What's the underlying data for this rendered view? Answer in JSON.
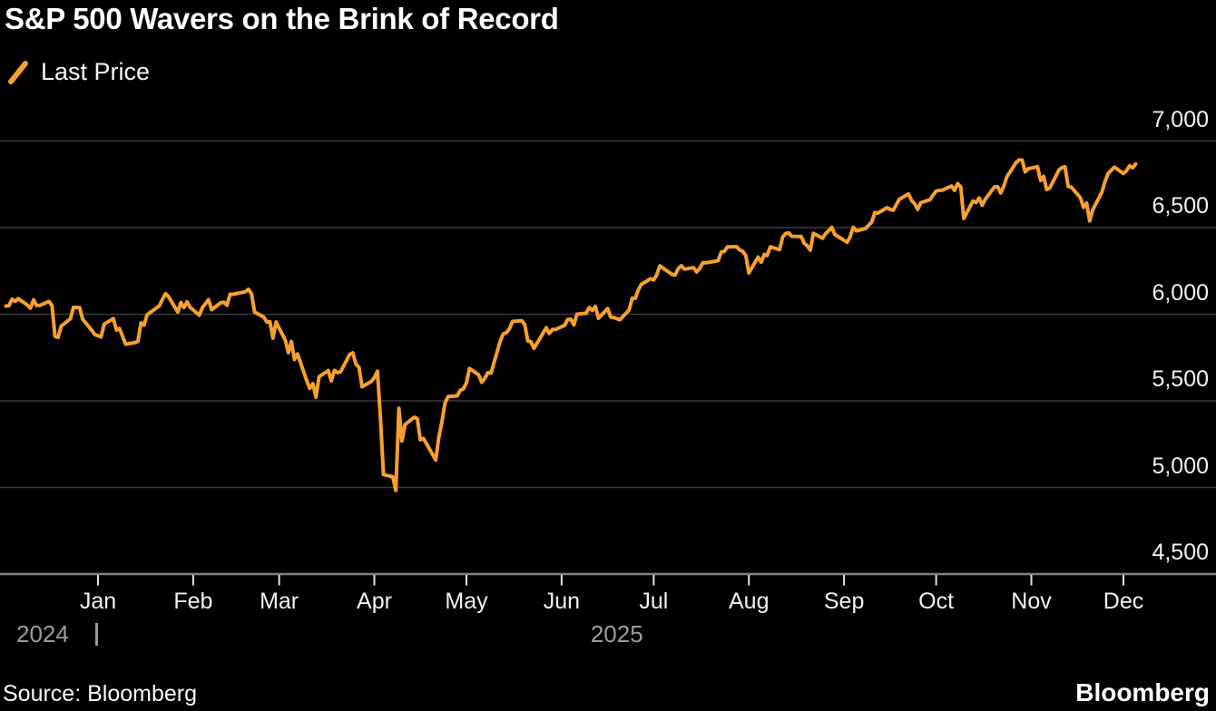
{
  "title": "S&P 500 Wavers on the Brink of Record",
  "legend": {
    "swatch_icon": "slash-icon",
    "label": "Last Price"
  },
  "footer": {
    "source": "Source: Bloomberg",
    "brand": "Bloomberg"
  },
  "colors": {
    "background": "#000000",
    "line": "#F7A02E",
    "gridline": "#3b3b3b",
    "axis_line": "#828282",
    "tick": "#e5e5e5",
    "label_white": "#f2f2f2",
    "label_gray": "#9c9c9c"
  },
  "chart_data": {
    "type": "line",
    "title": "S&P 500 Wavers on the Brink of Record",
    "legend_entries": [
      "Last Price"
    ],
    "legend_position": "top-left",
    "grid": "horizontal",
    "x_axis": {
      "tick_labels": [
        "Jan",
        "Feb",
        "Mar",
        "Apr",
        "May",
        "Jun",
        "Jul",
        "Aug",
        "Sep",
        "Oct",
        "Nov",
        "Dec"
      ],
      "year_labels": [
        "2024",
        "2025"
      ],
      "start": "2024-12-02",
      "end": "2025-12-05"
    },
    "y_axis": {
      "side": "right",
      "ticks": [
        7000,
        6500,
        6000,
        5500,
        5000,
        4500
      ],
      "tick_labels": [
        "7,000",
        "6,500",
        "6,000",
        "5,500",
        "5,000",
        "4,500"
      ],
      "range": [
        4400,
        7120
      ]
    },
    "series": [
      {
        "name": "Last Price",
        "color": "#F7A02E",
        "points": [
          [
            "2024-12-02",
            6047
          ],
          [
            "2024-12-03",
            6050
          ],
          [
            "2024-12-04",
            6087
          ],
          [
            "2024-12-05",
            6075
          ],
          [
            "2024-12-06",
            6090
          ],
          [
            "2024-12-09",
            6053
          ],
          [
            "2024-12-10",
            6035
          ],
          [
            "2024-12-11",
            6084
          ],
          [
            "2024-12-12",
            6051
          ],
          [
            "2024-12-13",
            6051
          ],
          [
            "2024-12-16",
            6074
          ],
          [
            "2024-12-17",
            6051
          ],
          [
            "2024-12-18",
            5872
          ],
          [
            "2024-12-19",
            5867
          ],
          [
            "2024-12-20",
            5931
          ],
          [
            "2024-12-23",
            5974
          ],
          [
            "2024-12-24",
            6040
          ],
          [
            "2024-12-26",
            6038
          ],
          [
            "2024-12-27",
            5971
          ],
          [
            "2024-12-30",
            5907
          ],
          [
            "2024-12-31",
            5882
          ],
          [
            "2025-01-02",
            5869
          ],
          [
            "2025-01-03",
            5943
          ],
          [
            "2025-01-06",
            5975
          ],
          [
            "2025-01-07",
            5909
          ],
          [
            "2025-01-08",
            5918
          ],
          [
            "2025-01-10",
            5827
          ],
          [
            "2025-01-13",
            5836
          ],
          [
            "2025-01-14",
            5843
          ],
          [
            "2025-01-15",
            5950
          ],
          [
            "2025-01-16",
            5937
          ],
          [
            "2025-01-17",
            5997
          ],
          [
            "2025-01-21",
            6049
          ],
          [
            "2025-01-22",
            6086
          ],
          [
            "2025-01-23",
            6119
          ],
          [
            "2025-01-24",
            6101
          ],
          [
            "2025-01-27",
            6012
          ],
          [
            "2025-01-28",
            6068
          ],
          [
            "2025-01-29",
            6039
          ],
          [
            "2025-01-30",
            6071
          ],
          [
            "2025-01-31",
            6041
          ],
          [
            "2025-02-03",
            5995
          ],
          [
            "2025-02-04",
            6038
          ],
          [
            "2025-02-05",
            6061
          ],
          [
            "2025-02-06",
            6084
          ],
          [
            "2025-02-07",
            6026
          ],
          [
            "2025-02-10",
            6066
          ],
          [
            "2025-02-11",
            6069
          ],
          [
            "2025-02-12",
            6052
          ],
          [
            "2025-02-13",
            6115
          ],
          [
            "2025-02-14",
            6115
          ],
          [
            "2025-02-18",
            6130
          ],
          [
            "2025-02-19",
            6144
          ],
          [
            "2025-02-20",
            6118
          ],
          [
            "2025-02-21",
            6013
          ],
          [
            "2025-02-24",
            5983
          ],
          [
            "2025-02-25",
            5955
          ],
          [
            "2025-02-26",
            5956
          ],
          [
            "2025-02-27",
            5862
          ],
          [
            "2025-02-28",
            5955
          ],
          [
            "2025-03-03",
            5850
          ],
          [
            "2025-03-04",
            5778
          ],
          [
            "2025-03-05",
            5843
          ],
          [
            "2025-03-06",
            5739
          ],
          [
            "2025-03-07",
            5770
          ],
          [
            "2025-03-10",
            5615
          ],
          [
            "2025-03-11",
            5572
          ],
          [
            "2025-03-12",
            5599
          ],
          [
            "2025-03-13",
            5521
          ],
          [
            "2025-03-14",
            5639
          ],
          [
            "2025-03-17",
            5675
          ],
          [
            "2025-03-18",
            5615
          ],
          [
            "2025-03-19",
            5676
          ],
          [
            "2025-03-20",
            5663
          ],
          [
            "2025-03-21",
            5668
          ],
          [
            "2025-03-24",
            5768
          ],
          [
            "2025-03-25",
            5777
          ],
          [
            "2025-03-26",
            5712
          ],
          [
            "2025-03-27",
            5693
          ],
          [
            "2025-03-28",
            5581
          ],
          [
            "2025-03-31",
            5612
          ],
          [
            "2025-04-01",
            5633
          ],
          [
            "2025-04-02",
            5671
          ],
          [
            "2025-04-03",
            5396
          ],
          [
            "2025-04-04",
            5074
          ],
          [
            "2025-04-07",
            5062
          ],
          [
            "2025-04-08",
            4983
          ],
          [
            "2025-04-09",
            5457
          ],
          [
            "2025-04-10",
            5268
          ],
          [
            "2025-04-11",
            5363
          ],
          [
            "2025-04-14",
            5406
          ],
          [
            "2025-04-15",
            5397
          ],
          [
            "2025-04-16",
            5275
          ],
          [
            "2025-04-17",
            5283
          ],
          [
            "2025-04-21",
            5158
          ],
          [
            "2025-04-22",
            5288
          ],
          [
            "2025-04-23",
            5376
          ],
          [
            "2025-04-24",
            5485
          ],
          [
            "2025-04-25",
            5525
          ],
          [
            "2025-04-28",
            5529
          ],
          [
            "2025-04-29",
            5561
          ],
          [
            "2025-04-30",
            5569
          ],
          [
            "2025-05-01",
            5604
          ],
          [
            "2025-05-02",
            5687
          ],
          [
            "2025-05-05",
            5650
          ],
          [
            "2025-05-06",
            5607
          ],
          [
            "2025-05-07",
            5631
          ],
          [
            "2025-05-08",
            5663
          ],
          [
            "2025-05-09",
            5660
          ],
          [
            "2025-05-12",
            5844
          ],
          [
            "2025-05-13",
            5887
          ],
          [
            "2025-05-14",
            5893
          ],
          [
            "2025-05-15",
            5916
          ],
          [
            "2025-05-16",
            5958
          ],
          [
            "2025-05-19",
            5963
          ],
          [
            "2025-05-20",
            5940
          ],
          [
            "2025-05-21",
            5845
          ],
          [
            "2025-05-22",
            5842
          ],
          [
            "2025-05-23",
            5803
          ],
          [
            "2025-05-27",
            5922
          ],
          [
            "2025-05-28",
            5889
          ],
          [
            "2025-05-29",
            5912
          ],
          [
            "2025-05-30",
            5912
          ],
          [
            "2025-06-02",
            5936
          ],
          [
            "2025-06-03",
            5970
          ],
          [
            "2025-06-04",
            5971
          ],
          [
            "2025-06-05",
            5939
          ],
          [
            "2025-06-06",
            6000
          ],
          [
            "2025-06-09",
            6006
          ],
          [
            "2025-06-10",
            6039
          ],
          [
            "2025-06-11",
            6022
          ],
          [
            "2025-06-12",
            6045
          ],
          [
            "2025-06-13",
            5977
          ],
          [
            "2025-06-16",
            6033
          ],
          [
            "2025-06-17",
            5983
          ],
          [
            "2025-06-18",
            5981
          ],
          [
            "2025-06-20",
            5968
          ],
          [
            "2025-06-23",
            6025
          ],
          [
            "2025-06-24",
            6092
          ],
          [
            "2025-06-25",
            6092
          ],
          [
            "2025-06-26",
            6141
          ],
          [
            "2025-06-27",
            6173
          ],
          [
            "2025-06-30",
            6205
          ],
          [
            "2025-07-01",
            6198
          ],
          [
            "2025-07-02",
            6227
          ],
          [
            "2025-07-03",
            6279
          ],
          [
            "2025-07-07",
            6230
          ],
          [
            "2025-07-08",
            6226
          ],
          [
            "2025-07-09",
            6263
          ],
          [
            "2025-07-10",
            6280
          ],
          [
            "2025-07-11",
            6260
          ],
          [
            "2025-07-14",
            6269
          ],
          [
            "2025-07-15",
            6244
          ],
          [
            "2025-07-16",
            6264
          ],
          [
            "2025-07-17",
            6297
          ],
          [
            "2025-07-18",
            6297
          ],
          [
            "2025-07-21",
            6306
          ],
          [
            "2025-07-22",
            6310
          ],
          [
            "2025-07-23",
            6359
          ],
          [
            "2025-07-24",
            6363
          ],
          [
            "2025-07-25",
            6389
          ],
          [
            "2025-07-28",
            6390
          ],
          [
            "2025-07-29",
            6371
          ],
          [
            "2025-07-30",
            6363
          ],
          [
            "2025-07-31",
            6339
          ],
          [
            "2025-08-01",
            6238
          ],
          [
            "2025-08-04",
            6330
          ],
          [
            "2025-08-05",
            6300
          ],
          [
            "2025-08-06",
            6345
          ],
          [
            "2025-08-07",
            6340
          ],
          [
            "2025-08-08",
            6389
          ],
          [
            "2025-08-11",
            6373
          ],
          [
            "2025-08-12",
            6446
          ],
          [
            "2025-08-13",
            6466
          ],
          [
            "2025-08-14",
            6469
          ],
          [
            "2025-08-15",
            6450
          ],
          [
            "2025-08-18",
            6449
          ],
          [
            "2025-08-19",
            6411
          ],
          [
            "2025-08-20",
            6395
          ],
          [
            "2025-08-21",
            6370
          ],
          [
            "2025-08-22",
            6467
          ],
          [
            "2025-08-25",
            6439
          ],
          [
            "2025-08-26",
            6466
          ],
          [
            "2025-08-27",
            6482
          ],
          [
            "2025-08-28",
            6502
          ],
          [
            "2025-08-29",
            6460
          ],
          [
            "2025-09-02",
            6415
          ],
          [
            "2025-09-03",
            6448
          ],
          [
            "2025-09-04",
            6502
          ],
          [
            "2025-09-05",
            6481
          ],
          [
            "2025-09-08",
            6495
          ],
          [
            "2025-09-09",
            6513
          ],
          [
            "2025-09-10",
            6532
          ],
          [
            "2025-09-11",
            6587
          ],
          [
            "2025-09-12",
            6584
          ],
          [
            "2025-09-15",
            6615
          ],
          [
            "2025-09-16",
            6606
          ],
          [
            "2025-09-17",
            6600
          ],
          [
            "2025-09-18",
            6632
          ],
          [
            "2025-09-19",
            6664
          ],
          [
            "2025-09-22",
            6694
          ],
          [
            "2025-09-23",
            6656
          ],
          [
            "2025-09-24",
            6638
          ],
          [
            "2025-09-25",
            6605
          ],
          [
            "2025-09-26",
            6644
          ],
          [
            "2025-09-29",
            6661
          ],
          [
            "2025-09-30",
            6688
          ],
          [
            "2025-10-01",
            6711
          ],
          [
            "2025-10-02",
            6715
          ],
          [
            "2025-10-03",
            6716
          ],
          [
            "2025-10-06",
            6740
          ],
          [
            "2025-10-07",
            6715
          ],
          [
            "2025-10-08",
            6754
          ],
          [
            "2025-10-09",
            6735
          ],
          [
            "2025-10-10",
            6553
          ],
          [
            "2025-10-13",
            6654
          ],
          [
            "2025-10-14",
            6645
          ],
          [
            "2025-10-15",
            6671
          ],
          [
            "2025-10-16",
            6629
          ],
          [
            "2025-10-17",
            6664
          ],
          [
            "2025-10-20",
            6735
          ],
          [
            "2025-10-21",
            6736
          ],
          [
            "2025-10-22",
            6700
          ],
          [
            "2025-10-23",
            6738
          ],
          [
            "2025-10-24",
            6792
          ],
          [
            "2025-10-27",
            6875
          ],
          [
            "2025-10-28",
            6891
          ],
          [
            "2025-10-29",
            6890
          ],
          [
            "2025-10-30",
            6822
          ],
          [
            "2025-10-31",
            6840
          ],
          [
            "2025-11-03",
            6852
          ],
          [
            "2025-11-04",
            6772
          ],
          [
            "2025-11-05",
            6796
          ],
          [
            "2025-11-06",
            6720
          ],
          [
            "2025-11-07",
            6729
          ],
          [
            "2025-11-10",
            6833
          ],
          [
            "2025-11-11",
            6847
          ],
          [
            "2025-11-12",
            6851
          ],
          [
            "2025-11-13",
            6737
          ],
          [
            "2025-11-14",
            6734
          ],
          [
            "2025-11-17",
            6672
          ],
          [
            "2025-11-18",
            6617
          ],
          [
            "2025-11-19",
            6642
          ],
          [
            "2025-11-20",
            6539
          ],
          [
            "2025-11-21",
            6603
          ],
          [
            "2025-11-24",
            6705
          ],
          [
            "2025-11-25",
            6766
          ],
          [
            "2025-11-26",
            6812
          ],
          [
            "2025-11-28",
            6849
          ],
          [
            "2025-12-01",
            6812
          ],
          [
            "2025-12-02",
            6829
          ],
          [
            "2025-12-03",
            6857
          ],
          [
            "2025-12-04",
            6846
          ],
          [
            "2025-12-05",
            6867
          ]
        ]
      }
    ]
  }
}
